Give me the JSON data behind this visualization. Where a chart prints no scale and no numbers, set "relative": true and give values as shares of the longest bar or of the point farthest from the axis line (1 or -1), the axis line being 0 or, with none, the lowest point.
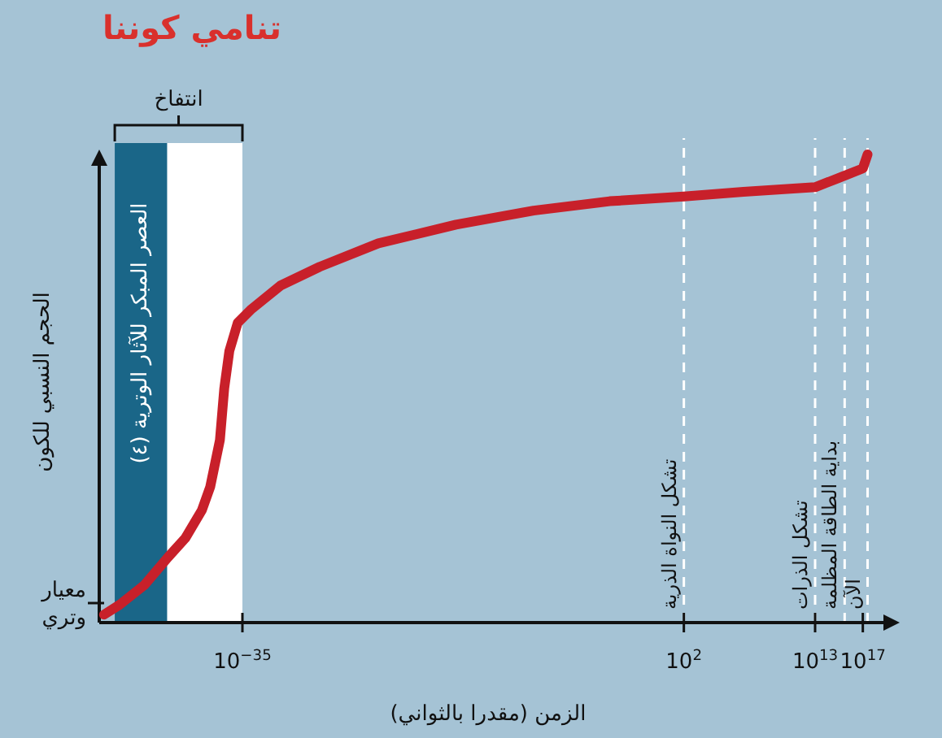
{
  "chart_data": {
    "type": "line",
    "title": "تنامي كوننا",
    "xlabel": "الزمن (مقدرا بالثواني)",
    "ylabel": "الحجم النسبي للكون",
    "relative": true,
    "log": "x",
    "xlim": [
      1e-47,
      1e+19
    ],
    "xticks": [
      {
        "value": 1e-35,
        "label": "10$^{−35}$"
      },
      {
        "value": 100,
        "label": "10$^{2}$"
      },
      {
        "value": 10000000000000.0,
        "label": "10$^{13}$"
      },
      {
        "value": 1e+17,
        "label": "10$^{17}$"
      }
    ],
    "x": [
      2.5e-47,
      5e-46,
      6e-44,
      6e-42,
      1.6e-40,
      4e-39,
      2e-38,
      1.3e-37,
      3e-37,
      8e-37,
      4e-36,
      6e-35,
      1.6e-32,
      3e-29,
      2.5e-24,
      8e-18,
      2.5e-11,
      6e-05,
      100,
      10000000.0,
      10000000000000.0,
      1000000000000000.0,
      1e+17,
      2.5e+17
    ],
    "series": [
      {
        "color": "#c8202a",
        "values": [
          0.017,
          0.038,
          0.08,
          0.14,
          0.18,
          0.24,
          0.29,
          0.39,
          0.5,
          0.58,
          0.64,
          0.67,
          0.72,
          0.76,
          0.81,
          0.85,
          0.88,
          0.9,
          0.91,
          0.92,
          0.93,
          0.95,
          0.97,
          1
        ]
      }
    ],
    "bands": [
      {
        "axis": "x",
        "from": 2e-46,
        "to": 5e-42,
        "label": "العصر المبكر للآثار الوترية (٤)",
        "color": "#1a6688"
      },
      {
        "axis": "x",
        "from": 5e-42,
        "to": 1e-35,
        "label": null,
        "color": "#ffffff"
      }
    ],
    "ref_lines": [
      {
        "axis": "x",
        "value": 100,
        "label": "تشكل النواة الذرية",
        "color": "#ffffff",
        "line_style": "dashed"
      },
      {
        "axis": "x",
        "value": 10000000000000.0,
        "label": "تشكل الذرات",
        "color": "#ffffff",
        "line_style": "dashed"
      },
      {
        "axis": "x",
        "value": 3000000000000000.0,
        "label": "بداية الطاقة المظلمة",
        "color": "#ffffff",
        "line_style": "dashed"
      },
      {
        "axis": "x",
        "value": 2.5e+17,
        "label": "الآن",
        "color": "#ffffff",
        "line_style": "dashed"
      }
    ],
    "annotations": [
      "انتفاخ",
      "معيار وتري"
    ]
  }
}
